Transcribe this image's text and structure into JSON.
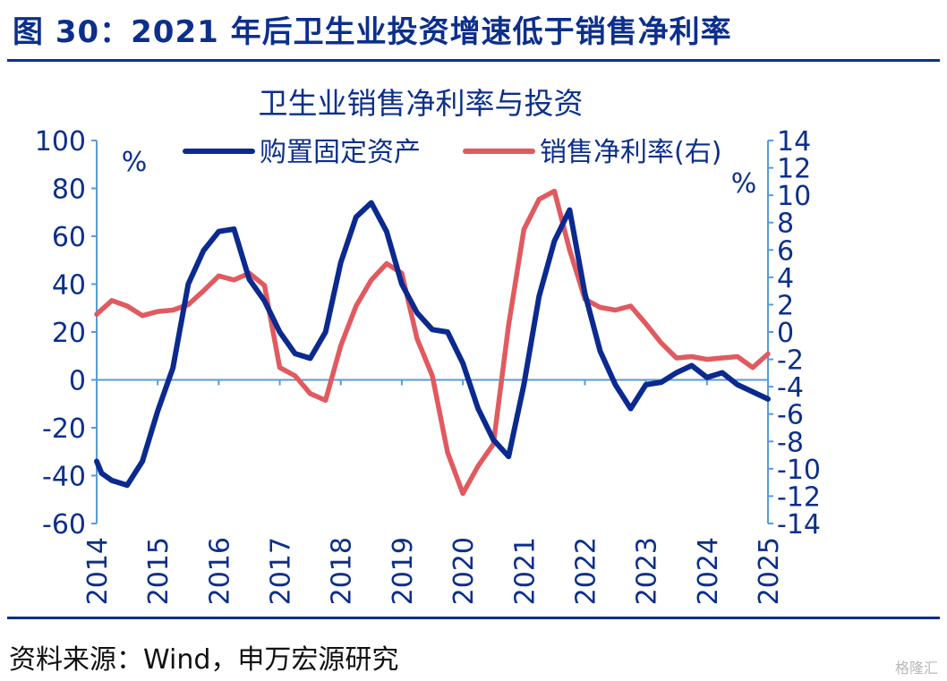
{
  "figure": {
    "title": "图 30：2021 年后卫生业投资增速低于销售净利率",
    "source": "资料来源：Wind，申万宏源研究",
    "watermark": "格隆汇",
    "accent_color": "#0c2f8c"
  },
  "chart_data": {
    "type": "line",
    "title": "卫生业销售净利率与投资",
    "left_axis": {
      "unit": "%",
      "ylim": [
        -60,
        100
      ],
      "ticks": [
        100,
        80,
        60,
        40,
        20,
        0,
        -20,
        -40,
        -60
      ]
    },
    "right_axis": {
      "unit": "%",
      "ylim": [
        -14,
        14
      ],
      "ticks": [
        14,
        12,
        10,
        8,
        6,
        4,
        2,
        0,
        -2,
        -4,
        -6,
        -8,
        -10,
        -12,
        -14
      ]
    },
    "x_axis": {
      "xlim": [
        2014,
        2025
      ],
      "ticks": [
        "2014",
        "2015",
        "2016",
        "2017",
        "2018",
        "2019",
        "2020",
        "2021",
        "2022",
        "2023",
        "2024",
        "2025"
      ]
    },
    "legend_position": "top",
    "series": [
      {
        "name": "购置固定资产",
        "axis": "left",
        "color": "#0b2a8f",
        "x": [
          2014.0,
          2014.08,
          2014.25,
          2014.5,
          2014.75,
          2015.0,
          2015.25,
          2015.5,
          2015.75,
          2016.0,
          2016.25,
          2016.5,
          2016.75,
          2017.0,
          2017.25,
          2017.5,
          2017.75,
          2018.0,
          2018.25,
          2018.5,
          2018.75,
          2019.0,
          2019.25,
          2019.5,
          2019.75,
          2020.0,
          2020.25,
          2020.5,
          2020.75,
          2021.0,
          2021.25,
          2021.5,
          2021.75,
          2022.0,
          2022.25,
          2022.5,
          2022.75,
          2023.0,
          2023.25,
          2023.5,
          2023.75,
          2024.0,
          2024.25,
          2024.5,
          2024.75,
          2025.0
        ],
        "values": [
          -34,
          -39,
          -42,
          -44,
          -34,
          -13,
          5,
          40,
          54,
          62,
          63,
          42,
          33,
          20,
          11,
          9,
          20,
          49,
          68,
          74,
          62,
          40,
          28,
          21,
          20,
          7,
          -12,
          -25,
          -32,
          -2,
          35,
          58,
          71,
          36,
          12,
          -2,
          -12,
          -2,
          -1,
          3,
          6,
          1,
          3,
          -2,
          -5,
          -8
        ]
      },
      {
        "name": "销售净利率(右)",
        "axis": "right",
        "color": "#e05a5f",
        "x": [
          2014.0,
          2014.25,
          2014.5,
          2014.75,
          2015.0,
          2015.25,
          2015.5,
          2015.75,
          2016.0,
          2016.25,
          2016.5,
          2016.75,
          2017.0,
          2017.25,
          2017.5,
          2017.75,
          2018.0,
          2018.25,
          2018.5,
          2018.75,
          2019.0,
          2019.25,
          2019.5,
          2019.75,
          2020.0,
          2020.25,
          2020.5,
          2020.75,
          2021.0,
          2021.25,
          2021.5,
          2021.75,
          2022.0,
          2022.25,
          2022.5,
          2022.75,
          2023.0,
          2023.25,
          2023.5,
          2023.75,
          2024.0,
          2024.25,
          2024.5,
          2024.75,
          2025.0
        ],
        "values": [
          1.3,
          2.3,
          1.9,
          1.2,
          1.5,
          1.6,
          2.0,
          3.0,
          4.1,
          3.8,
          4.3,
          3.4,
          -2.6,
          -3.2,
          -4.5,
          -5.0,
          -1.0,
          1.9,
          3.8,
          5.0,
          4.3,
          -0.5,
          -3.2,
          -8.8,
          -11.8,
          -9.8,
          -8.2,
          0.5,
          7.5,
          9.7,
          10.3,
          6.0,
          2.4,
          1.8,
          1.6,
          1.9,
          0.6,
          -0.8,
          -1.9,
          -1.8,
          -2.0,
          -1.9,
          -1.8,
          -2.6,
          -1.6
        ]
      }
    ]
  }
}
